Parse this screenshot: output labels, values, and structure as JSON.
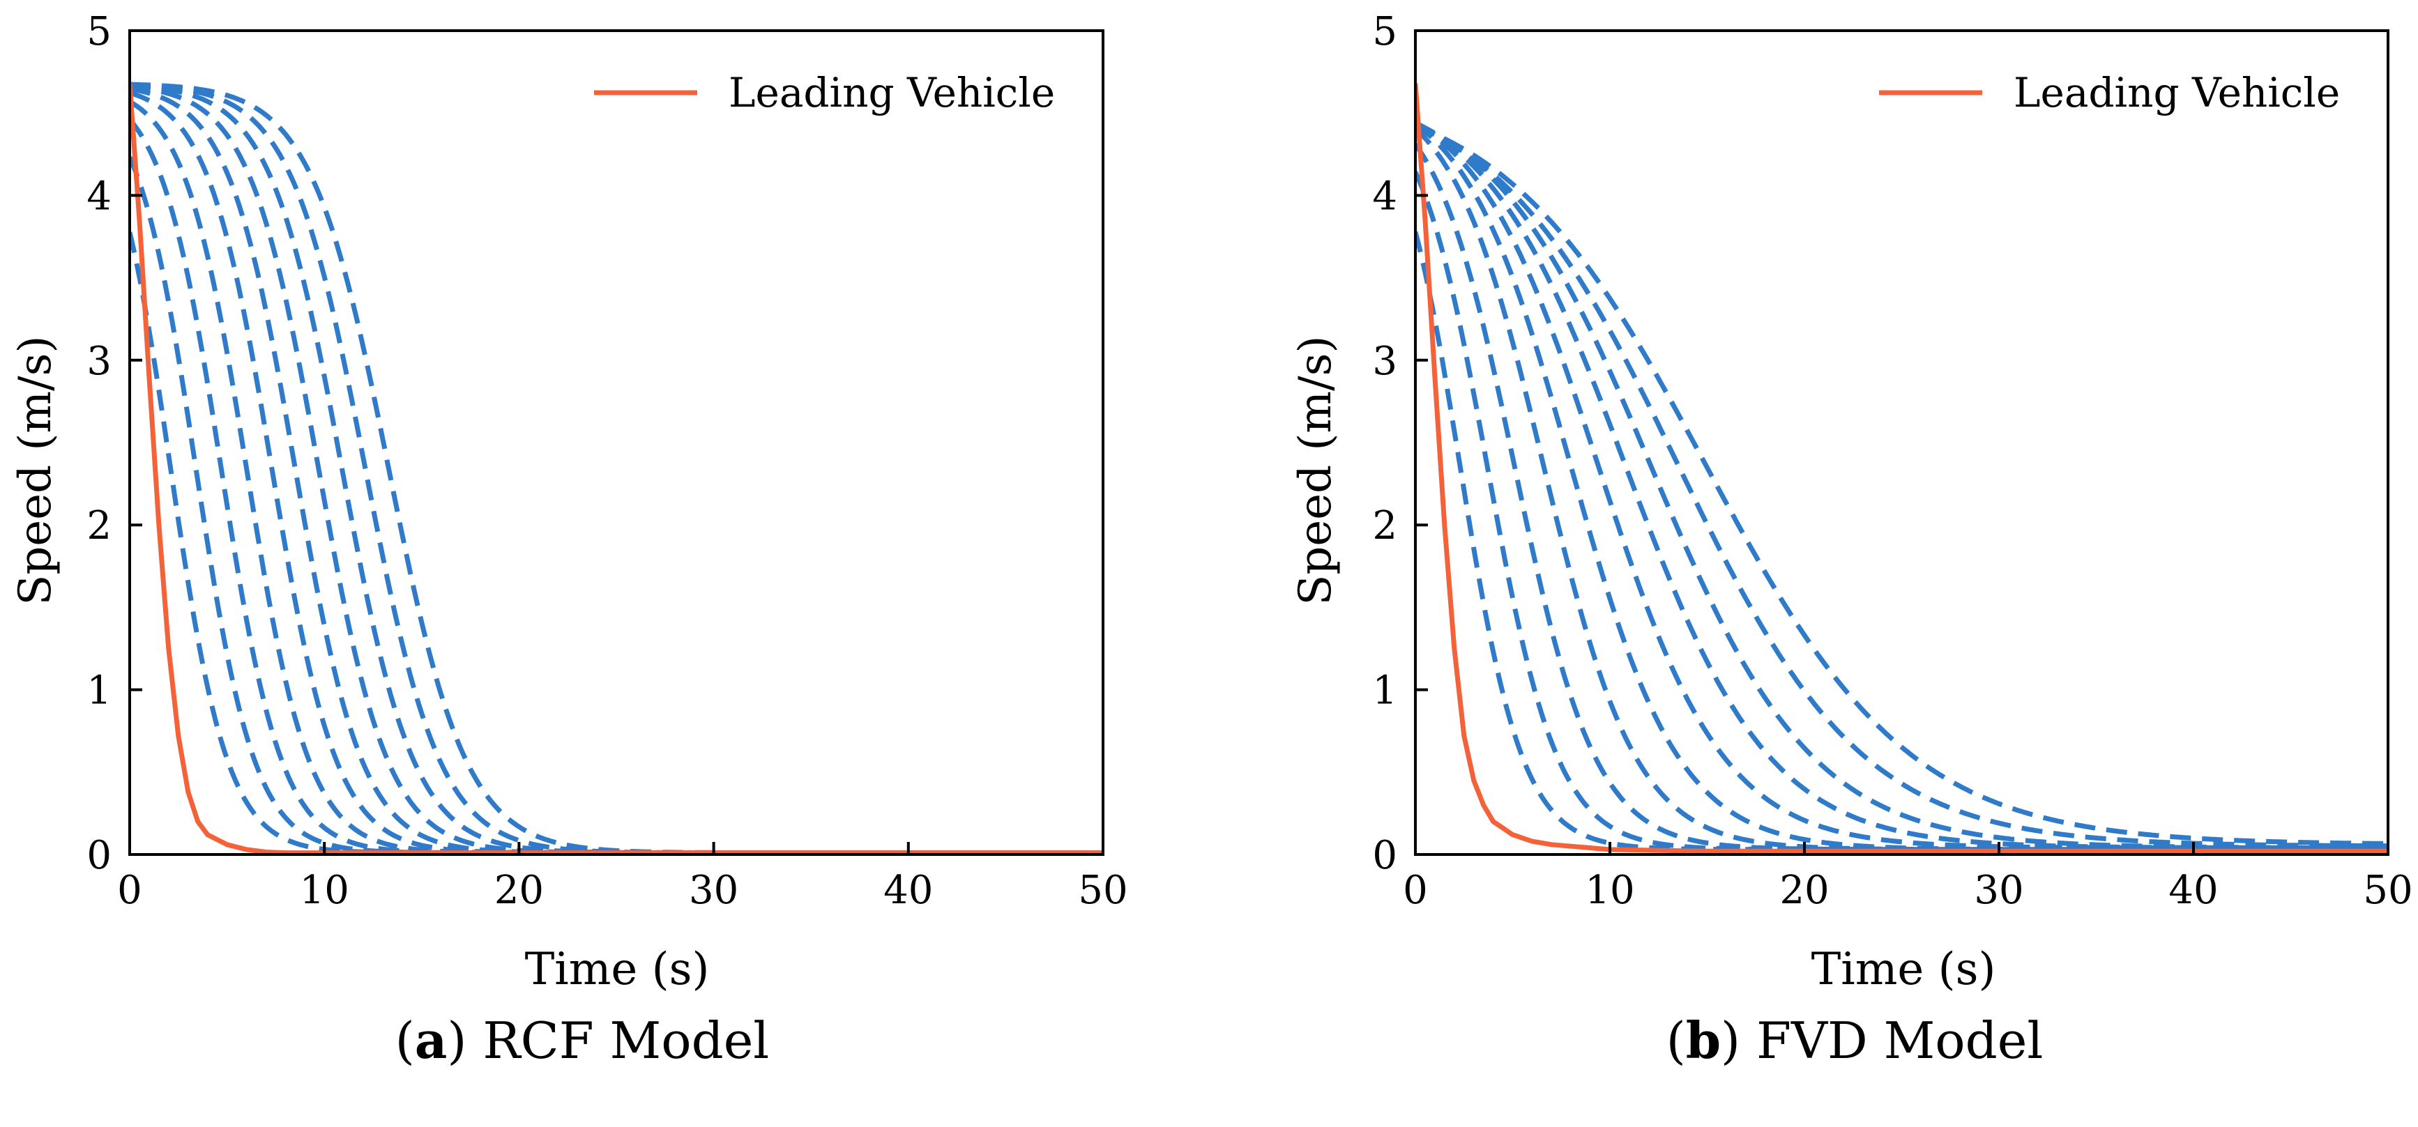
{
  "chart_data": [
    {
      "type": "line",
      "panel_label": "a",
      "caption": "RCF Model",
      "xlabel": "Time (s)",
      "ylabel": "Speed (m/s)",
      "xlim": [
        0,
        50
      ],
      "ylim": [
        0,
        5
      ],
      "x_ticks": [
        "0",
        "10",
        "20",
        "30",
        "40",
        "50"
      ],
      "y_ticks": [
        "0",
        "1",
        "2",
        "3",
        "4",
        "5"
      ],
      "legend": {
        "label": "Leading Vehicle",
        "placement": "top-right"
      },
      "colors": {
        "leading": "#f4623a",
        "following": "#2f7ac9"
      },
      "leading_vehicle": {
        "name": "Leading Vehicle",
        "x": [
          0,
          0.5,
          1,
          1.5,
          2,
          2.5,
          3,
          3.5,
          4,
          5,
          6,
          7,
          8,
          10,
          15,
          20,
          30,
          40,
          50
        ],
        "y": [
          4.68,
          3.85,
          2.9,
          2.0,
          1.25,
          0.72,
          0.38,
          0.2,
          0.12,
          0.06,
          0.03,
          0.015,
          0.01,
          0.01,
          0.01,
          0.01,
          0.01,
          0.01,
          0.01
        ]
      },
      "following_vehicles": {
        "count": 10,
        "v0": 4.68,
        "midpoints": [
          2.1,
          3.4,
          4.7,
          6.0,
          7.3,
          8.5,
          9.7,
          10.9,
          12.1,
          13.3
        ],
        "steepness": [
          0.68,
          0.66,
          0.64,
          0.62,
          0.6,
          0.58,
          0.56,
          0.54,
          0.52,
          0.5
        ],
        "tail": [
          0.01,
          0.01,
          0.01,
          0.01,
          0.01,
          0.01,
          0.01,
          0.01,
          0.01,
          0.01
        ]
      }
    },
    {
      "type": "line",
      "panel_label": "b",
      "caption": "FVD Model",
      "xlabel": "Time (s)",
      "ylabel": "Speed (m/s)",
      "xlim": [
        0,
        50
      ],
      "ylim": [
        0,
        5
      ],
      "x_ticks": [
        "0",
        "10",
        "20",
        "30",
        "40",
        "50"
      ],
      "y_ticks": [
        "0",
        "1",
        "2",
        "3",
        "4",
        "5"
      ],
      "legend": {
        "label": "Leading Vehicle",
        "placement": "top-right"
      },
      "colors": {
        "leading": "#f4623a",
        "following": "#2f7ac9"
      },
      "leading_vehicle": {
        "name": "Leading Vehicle",
        "x": [
          0,
          0.5,
          1,
          1.5,
          2,
          2.5,
          3,
          3.5,
          4,
          5,
          6,
          7,
          8,
          10,
          15,
          20,
          30,
          40,
          50
        ],
        "y": [
          4.68,
          3.85,
          2.9,
          2.0,
          1.25,
          0.72,
          0.45,
          0.3,
          0.2,
          0.12,
          0.08,
          0.06,
          0.05,
          0.03,
          0.02,
          0.02,
          0.02,
          0.02,
          0.02
        ]
      },
      "following_vehicles": {
        "count": 10,
        "v0": 4.68,
        "midpoints": [
          2.3,
          3.7,
          5.1,
          6.6,
          8.0,
          9.4,
          10.8,
          12.1,
          13.5,
          14.9
        ],
        "steepness": [
          0.62,
          0.55,
          0.48,
          0.42,
          0.36,
          0.31,
          0.27,
          0.24,
          0.21,
          0.19
        ],
        "tail": [
          0.03,
          0.03,
          0.03,
          0.03,
          0.03,
          0.04,
          0.04,
          0.04,
          0.05,
          0.06
        ]
      }
    }
  ]
}
